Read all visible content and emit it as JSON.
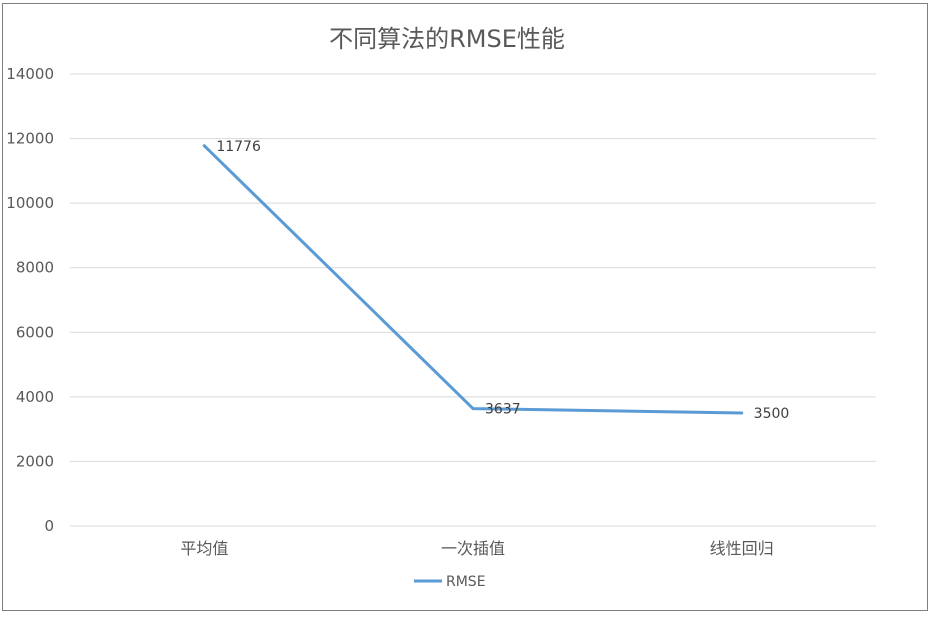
{
  "chart_data": {
    "type": "line",
    "title": "不同算法的RMSE性能",
    "categories": [
      "平均值",
      "一次插值",
      "线性回归"
    ],
    "series": [
      {
        "name": "RMSE",
        "values": [
          11776,
          3637,
          3500
        ],
        "color": "#5B9BD5"
      }
    ],
    "data_labels": [
      "11776",
      "3637",
      "3500"
    ],
    "ylim": [
      0,
      14000
    ],
    "yticks": [
      0,
      2000,
      4000,
      6000,
      8000,
      10000,
      12000,
      14000
    ],
    "ytick_labels": [
      "0",
      "2000",
      "4000",
      "6000",
      "8000",
      "10000",
      "12000",
      "14000"
    ],
    "grid": true,
    "legend_position": "bottom",
    "xlabel": "",
    "ylabel": ""
  }
}
